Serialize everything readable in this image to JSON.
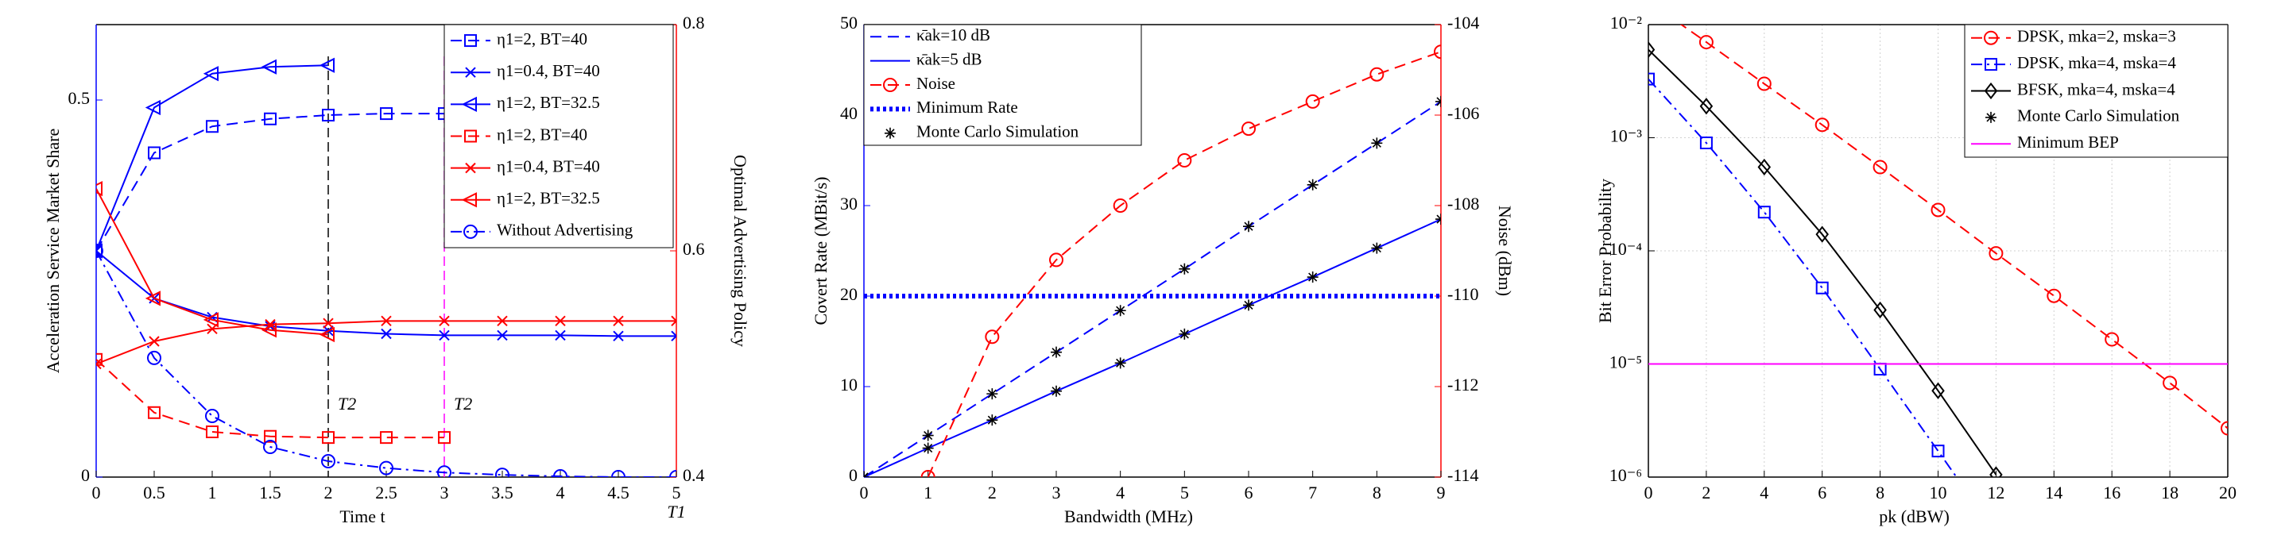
{
  "chart_data": [
    {
      "type": "line",
      "xlabel": "Time  t",
      "ylabel": "Acceleration Service Market Share",
      "y2label": "Optimal Advertising Policy",
      "axis_colors": {
        "y": "#0000ff",
        "y2": "#ff0000"
      },
      "x": [
        0,
        0.5,
        1,
        1.5,
        2,
        2.5,
        3,
        3.5,
        4,
        4.5,
        5
      ],
      "xlim": [
        0,
        5
      ],
      "xticks": [
        0,
        0.5,
        1,
        1.5,
        2,
        2.5,
        3,
        3.5,
        4,
        4.5,
        5
      ],
      "ylim": [
        0,
        0.6
      ],
      "yticks": [
        0,
        0.5
      ],
      "y2lim": [
        0.4,
        0.8
      ],
      "y2ticks": [
        0.4,
        0.6,
        0.8
      ],
      "grid": false,
      "legend": "upper right",
      "series": [
        {
          "name": "η1=2,  BT=40",
          "color": "#0000ff",
          "dash": "dashed",
          "marker": "square",
          "values": [
            0.3,
            0.43,
            0.465,
            0.475,
            0.48,
            0.482,
            0.482,
            null,
            null,
            null,
            null
          ]
        },
        {
          "name": "η1=0.4,  BT=40",
          "color": "#0000ff",
          "dash": "solid",
          "marker": "x",
          "values": [
            0.3,
            0.237,
            0.212,
            0.2,
            0.194,
            0.19,
            0.188,
            0.188,
            0.188,
            0.187,
            0.187
          ]
        },
        {
          "name": "η1=2,  BT=32.5",
          "color": "#0000ff",
          "dash": "solid",
          "marker": "triangle-left",
          "values": [
            0.3,
            0.49,
            0.535,
            0.544,
            0.546,
            null,
            null,
            null,
            null,
            null,
            null
          ]
        },
        {
          "name": "η1=2,  BT=40",
          "color": "#ff0000",
          "dash": "dashed",
          "marker": "square",
          "axis": "y2",
          "values": [
            0.504,
            0.457,
            0.44,
            0.436,
            0.435,
            0.435,
            0.435,
            null,
            null,
            null,
            null
          ]
        },
        {
          "name": "η1=0.4,  BT=40",
          "color": "#ff0000",
          "dash": "solid",
          "marker": "x",
          "axis": "y2",
          "values": [
            0.5,
            0.52,
            0.531,
            0.535,
            0.536,
            0.538,
            0.538,
            0.538,
            0.538,
            0.538,
            0.538
          ]
        },
        {
          "name": "η1=2,  BT=32.5",
          "color": "#ff0000",
          "dash": "solid",
          "marker": "triangle-left",
          "axis": "y2",
          "values": [
            0.655,
            0.558,
            0.539,
            0.53,
            0.526,
            null,
            null,
            null,
            null,
            null,
            null
          ]
        },
        {
          "name": "Without Advertising",
          "color": "#0000ff",
          "dash": "dashdot",
          "marker": "circle",
          "values": [
            0.3,
            0.158,
            0.081,
            0.04,
            0.021,
            0.012,
            0.006,
            0.003,
            0.001,
            0,
            0
          ]
        }
      ],
      "vlines": [
        {
          "x": 2,
          "label": "T2",
          "color": "#000000"
        },
        {
          "x": 3,
          "label": "T2",
          "color": "#ff00ff"
        }
      ],
      "annotations": [
        {
          "text": "T1",
          "x": 5
        }
      ]
    },
    {
      "type": "line",
      "xlabel": "Bandwidth (MHz)",
      "ylabel": "Covert Rate (MBit/s)",
      "y2label": "Noise (dBm)",
      "axis_colors": {
        "y": "#0000ff",
        "y2": "#ff0000"
      },
      "x": [
        0,
        1,
        2,
        3,
        4,
        5,
        6,
        7,
        8,
        9
      ],
      "xlim": [
        0,
        9
      ],
      "xticks": [
        0,
        1,
        2,
        3,
        4,
        5,
        6,
        7,
        8,
        9
      ],
      "ylim": [
        0,
        50
      ],
      "yticks": [
        0,
        10,
        20,
        30,
        40,
        50
      ],
      "y2lim": [
        -114,
        -104
      ],
      "y2ticks": [
        -114,
        -112,
        -110,
        -108,
        -106,
        -104
      ],
      "grid": false,
      "legend": "upper left",
      "series": [
        {
          "name": "κ̄ak=10 dB",
          "color": "#0000ff",
          "dash": "dashed",
          "marker": "none",
          "values": [
            0,
            4.6,
            9.2,
            13.8,
            18.4,
            23.0,
            27.7,
            32.3,
            36.9,
            41.5
          ]
        },
        {
          "name": "κ̄ak=5 dB",
          "color": "#0000ff",
          "dash": "solid",
          "marker": "none",
          "values": [
            0,
            3.2,
            6.3,
            9.5,
            12.6,
            15.8,
            19.0,
            22.1,
            25.3,
            28.5
          ]
        },
        {
          "name": "Noise",
          "color": "#ff0000",
          "dash": "dashed",
          "marker": "circle",
          "axis": "y2",
          "values": [
            null,
            -114,
            -110.9,
            -109.2,
            -108.0,
            -107.0,
            -106.3,
            -105.7,
            -105.1,
            -104.6
          ]
        },
        {
          "name": "Minimum Rate",
          "color": "#0000ff",
          "dash": "dotted",
          "marker": "none",
          "x": [
            0,
            9
          ],
          "values": [
            20,
            20
          ]
        },
        {
          "name": "Monte Carlo Simulation",
          "color": "#000000",
          "dash": "none",
          "marker": "star",
          "x": [
            0,
            1,
            2,
            3,
            4,
            5,
            6,
            7,
            8,
            9,
            0,
            1,
            2,
            3,
            4,
            5,
            6,
            7,
            8,
            9
          ],
          "values": [
            0,
            4.6,
            9.2,
            13.8,
            18.4,
            23.0,
            27.7,
            32.3,
            36.9,
            41.5,
            0,
            3.2,
            6.3,
            9.5,
            12.6,
            15.8,
            19.0,
            22.1,
            25.3,
            28.5
          ]
        }
      ]
    },
    {
      "type": "line",
      "xlabel": "pk (dBW)",
      "ylabel": "Bit Error Probability",
      "yscale": "log",
      "axis_colors": {
        "y": "#000000"
      },
      "x": [
        0,
        2,
        4,
        6,
        8,
        10,
        12,
        14,
        16,
        18,
        20
      ],
      "xlim": [
        0,
        20
      ],
      "xticks": [
        0,
        2,
        4,
        6,
        8,
        10,
        12,
        14,
        16,
        18,
        20
      ],
      "ylim": [
        1e-06,
        0.01
      ],
      "yticks": [
        {
          "value": 1e-06,
          "label": "10⁻⁶"
        },
        {
          "value": 1e-05,
          "label": "10⁻⁵"
        },
        {
          "value": 0.0001,
          "label": "10⁻⁴"
        },
        {
          "value": 0.001,
          "label": "10⁻³"
        },
        {
          "value": 0.01,
          "label": "10⁻²"
        }
      ],
      "grid": true,
      "legend": "upper right",
      "series": [
        {
          "name": "DPSK,  mka=2,  msk​a=3",
          "color": "#ff0000",
          "dash": "dashed",
          "marker": "circle",
          "values": [
            0.016,
            0.007,
            0.003,
            0.0013,
            0.00055,
            0.00023,
            9.5e-05,
            4e-05,
            1.65e-05,
            6.8e-06,
            2.7e-06
          ]
        },
        {
          "name": "DPSK,  mka=4,  ms​ka=4",
          "color": "#0000ff",
          "dash": "dashdot",
          "marker": "square",
          "values": [
            0.0033,
            0.0009,
            0.00022,
            4.7e-05,
            9e-06,
            1.7e-06,
            3.2e-07,
            null,
            null,
            null,
            null
          ]
        },
        {
          "name": "BFSK,  mka=4,  ms​ka=4",
          "color": "#000000",
          "dash": "solid",
          "marker": "diamond",
          "values": [
            0.006,
            0.0019,
            0.00055,
            0.00014,
            3e-05,
            5.8e-06,
            1.05e-06,
            null,
            null,
            null,
            null
          ]
        },
        {
          "name": "Monte Carlo Simulation",
          "color": "#000000",
          "dash": "none",
          "marker": "star",
          "x": [],
          "values": []
        },
        {
          "name": "Minimum BEP",
          "color": "#ff00ff",
          "dash": "solid",
          "marker": "none",
          "x": [
            0,
            20
          ],
          "values": [
            1e-05,
            1e-05
          ]
        }
      ]
    }
  ]
}
